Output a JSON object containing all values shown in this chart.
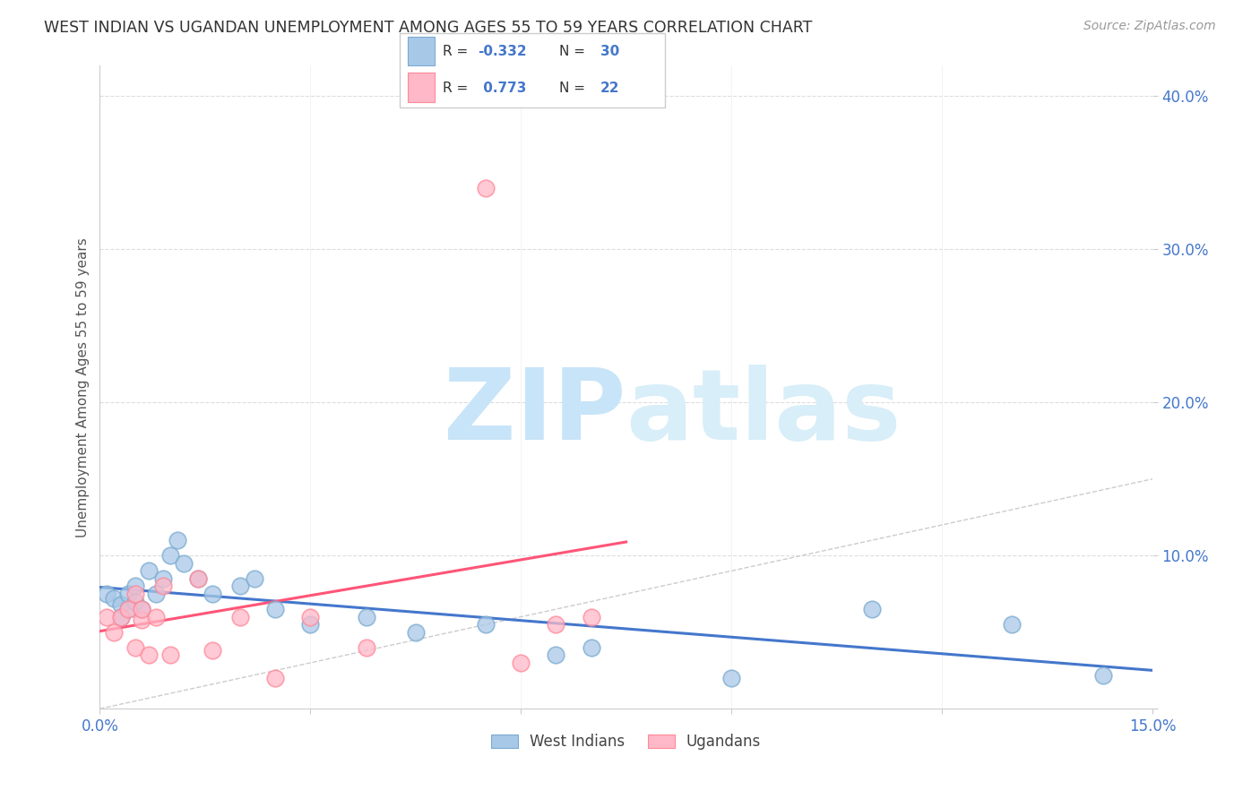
{
  "title": "WEST INDIAN VS UGANDAN UNEMPLOYMENT AMONG AGES 55 TO 59 YEARS CORRELATION CHART",
  "source": "Source: ZipAtlas.com",
  "ylabel": "Unemployment Among Ages 55 to 59 years",
  "xlim": [
    0.0,
    0.15
  ],
  "ylim": [
    0.0,
    0.42
  ],
  "blue_color": "#A8C8E8",
  "blue_edge_color": "#7AAAD0",
  "pink_color": "#FFB8C8",
  "pink_edge_color": "#FF8898",
  "blue_line_color": "#4477CC",
  "pink_line_color": "#FF5577",
  "diagonal_color": "#CCCCCC",
  "background_color": "#FFFFFF",
  "watermark_color": "#C8E4F8",
  "grid_color": "#DDDDDD",
  "tick_label_color": "#4477CC",
  "west_indian_x": [
    0.001,
    0.002,
    0.003,
    0.003,
    0.004,
    0.004,
    0.005,
    0.005,
    0.006,
    0.007,
    0.008,
    0.009,
    0.01,
    0.011,
    0.012,
    0.014,
    0.016,
    0.02,
    0.022,
    0.025,
    0.03,
    0.038,
    0.045,
    0.055,
    0.065,
    0.07,
    0.09,
    0.11,
    0.13,
    0.143
  ],
  "west_indian_y": [
    0.075,
    0.072,
    0.068,
    0.06,
    0.075,
    0.065,
    0.08,
    0.07,
    0.065,
    0.09,
    0.075,
    0.085,
    0.1,
    0.11,
    0.095,
    0.085,
    0.075,
    0.08,
    0.085,
    0.065,
    0.055,
    0.06,
    0.05,
    0.055,
    0.035,
    0.04,
    0.02,
    0.065,
    0.055,
    0.022
  ],
  "ugandan_x": [
    0.001,
    0.002,
    0.003,
    0.004,
    0.005,
    0.005,
    0.006,
    0.006,
    0.007,
    0.008,
    0.009,
    0.01,
    0.014,
    0.016,
    0.02,
    0.025,
    0.03,
    0.038,
    0.055,
    0.06,
    0.065,
    0.07
  ],
  "ugandan_y": [
    0.06,
    0.05,
    0.06,
    0.065,
    0.075,
    0.04,
    0.058,
    0.065,
    0.035,
    0.06,
    0.08,
    0.035,
    0.085,
    0.038,
    0.06,
    0.02,
    0.06,
    0.04,
    0.34,
    0.03,
    0.055,
    0.06
  ],
  "legend_r1": "R = -0.332",
  "legend_n1": "N = 30",
  "legend_r2": "R =  0.773",
  "legend_n2": "N = 22",
  "legend_label1": "West Indians",
  "legend_label2": "Ugandans"
}
